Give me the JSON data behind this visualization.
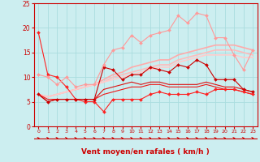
{
  "xlabel": "Vent moyen/en rafales ( km/h )",
  "bg_color": "#cceef0",
  "grid_color": "#aadddf",
  "xlim": [
    -0.5,
    23.5
  ],
  "ylim": [
    0,
    25
  ],
  "yticks": [
    0,
    5,
    10,
    15,
    20,
    25
  ],
  "xticks": [
    0,
    1,
    2,
    3,
    4,
    5,
    6,
    7,
    8,
    9,
    10,
    11,
    12,
    13,
    14,
    15,
    16,
    17,
    18,
    19,
    20,
    21,
    22,
    23
  ],
  "lines": [
    {
      "y": [
        19.0,
        10.5,
        10.0,
        8.0,
        5.5,
        5.0,
        5.0,
        3.0,
        5.5,
        5.5,
        5.5,
        5.5,
        6.5,
        7.0,
        6.5,
        6.5,
        6.5,
        7.0,
        6.5,
        7.5,
        7.5,
        7.5,
        7.0,
        6.5
      ],
      "color": "#ff2020",
      "lw": 0.8,
      "marker": "D",
      "ms": 2.0,
      "zorder": 5
    },
    {
      "y": [
        6.5,
        5.0,
        5.5,
        5.5,
        5.5,
        5.5,
        5.5,
        12.0,
        11.5,
        9.5,
        10.5,
        10.5,
        12.0,
        11.5,
        11.0,
        12.5,
        12.0,
        13.5,
        12.5,
        9.5,
        9.5,
        9.5,
        7.5,
        7.0
      ],
      "color": "#cc0000",
      "lw": 0.8,
      "marker": "D",
      "ms": 2.0,
      "zorder": 5
    },
    {
      "y": [
        6.5,
        5.0,
        5.5,
        5.5,
        5.5,
        5.5,
        5.5,
        7.5,
        8.0,
        8.5,
        9.0,
        8.5,
        9.0,
        9.0,
        8.5,
        8.5,
        8.5,
        8.5,
        9.0,
        8.5,
        8.0,
        8.0,
        7.5,
        7.0
      ],
      "color": "#dd1010",
      "lw": 0.8,
      "marker": null,
      "ms": 0,
      "zorder": 4
    },
    {
      "y": [
        6.5,
        5.5,
        5.5,
        5.5,
        5.5,
        5.5,
        5.5,
        6.5,
        7.0,
        7.5,
        8.0,
        8.0,
        8.5,
        8.5,
        8.0,
        8.0,
        8.0,
        8.0,
        8.5,
        8.0,
        7.5,
        7.5,
        7.0,
        6.5
      ],
      "color": "#ee1818",
      "lw": 0.8,
      "marker": null,
      "ms": 0,
      "zorder": 4
    },
    {
      "y": [
        10.5,
        10.0,
        8.5,
        10.0,
        8.0,
        8.5,
        8.5,
        12.5,
        15.5,
        16.0,
        18.5,
        17.0,
        18.5,
        19.0,
        19.5,
        22.5,
        21.0,
        23.0,
        22.5,
        18.0,
        18.0,
        14.5,
        11.5,
        15.5
      ],
      "color": "#ff9999",
      "lw": 0.8,
      "marker": "D",
      "ms": 2.0,
      "zorder": 5
    },
    {
      "y": [
        6.5,
        6.0,
        6.5,
        7.0,
        7.5,
        8.0,
        8.5,
        9.5,
        10.5,
        11.0,
        12.0,
        12.5,
        13.0,
        13.5,
        13.5,
        14.5,
        15.0,
        15.5,
        16.0,
        16.5,
        16.5,
        16.5,
        16.0,
        15.5
      ],
      "color": "#ffaaaa",
      "lw": 1.2,
      "marker": null,
      "ms": 0,
      "zorder": 2
    },
    {
      "y": [
        6.5,
        6.0,
        6.5,
        7.0,
        7.5,
        8.0,
        8.5,
        9.0,
        10.0,
        10.5,
        11.0,
        11.5,
        12.0,
        12.5,
        12.5,
        13.5,
        14.0,
        14.5,
        15.0,
        15.5,
        15.5,
        15.5,
        15.0,
        14.5
      ],
      "color": "#ffbbbb",
      "lw": 1.2,
      "marker": null,
      "ms": 0,
      "zorder": 2
    },
    {
      "y": [
        6.5,
        6.0,
        6.5,
        7.0,
        7.5,
        8.0,
        8.5,
        9.0,
        9.5,
        10.0,
        10.5,
        11.0,
        11.5,
        12.0,
        12.0,
        13.0,
        13.5,
        14.0,
        14.5,
        14.5,
        14.5,
        14.5,
        14.0,
        14.0
      ],
      "color": "#ffcccc",
      "lw": 1.2,
      "marker": null,
      "ms": 0,
      "zorder": 2
    }
  ],
  "arrow_color": "#cc0000",
  "spine_color": "#cc0000"
}
